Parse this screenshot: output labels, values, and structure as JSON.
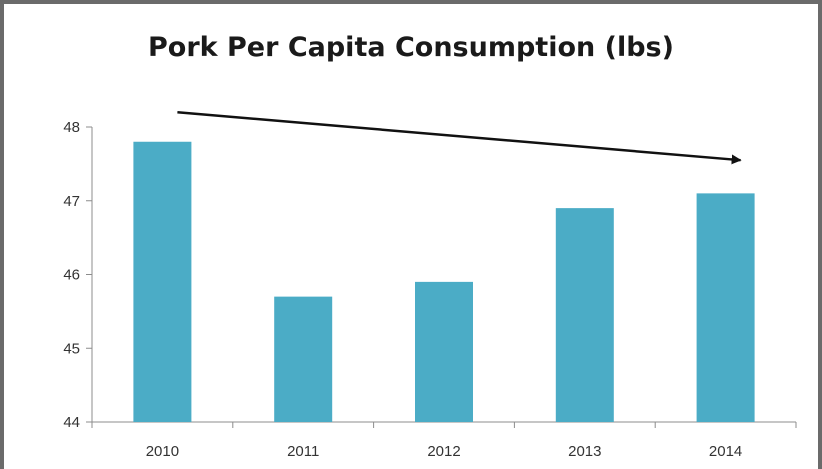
{
  "chart_data": {
    "type": "bar",
    "title": "Pork Per Capita Consumption (lbs)",
    "categories": [
      "2010",
      "2011",
      "2012",
      "2013",
      "2014"
    ],
    "values": [
      47.8,
      45.7,
      45.9,
      46.9,
      47.1
    ],
    "ylim": [
      44,
      48
    ],
    "yticks": [
      "44",
      "45",
      "46",
      "47",
      "48"
    ],
    "xlabel": "",
    "ylabel": "",
    "grid": false,
    "legend": "none",
    "bar_color": "#4bacc6",
    "annotations": [
      {
        "type": "arrow",
        "from": {
          "x": "2010",
          "y": 48.2
        },
        "to": {
          "x": "2014",
          "y": 47.55
        }
      }
    ]
  }
}
